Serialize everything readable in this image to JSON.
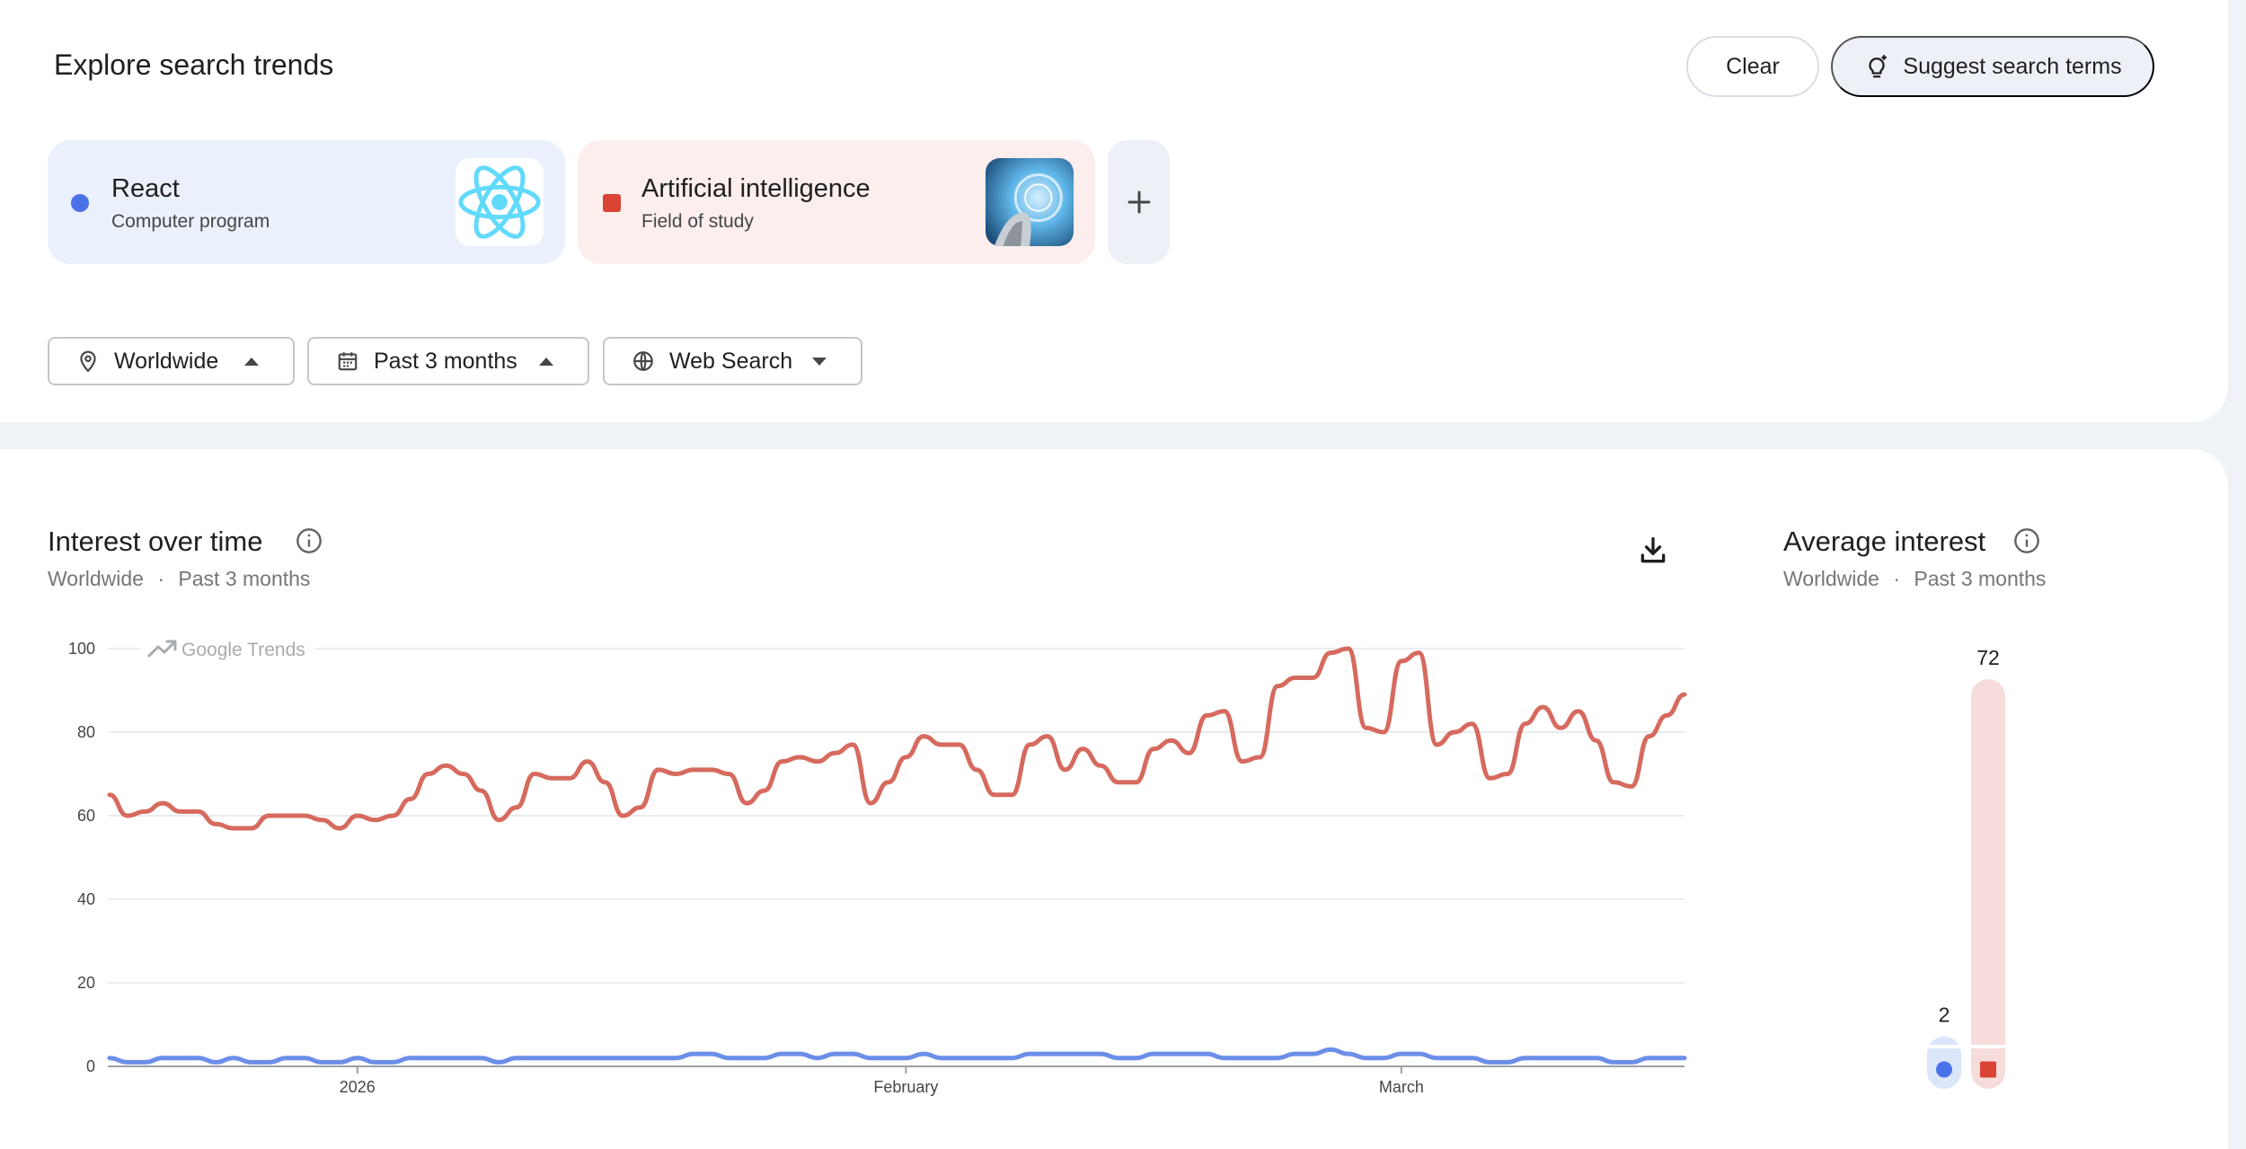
{
  "header": {
    "title": "Explore search trends",
    "clear_label": "Clear",
    "suggest_label": "Suggest search terms"
  },
  "terms": [
    {
      "name": "React",
      "type": "Computer program",
      "color": "#4a72e8",
      "marker": "circle"
    },
    {
      "name": "Artificial intelligence",
      "type": "Field of study",
      "color": "#d94434",
      "marker": "square"
    }
  ],
  "filters": {
    "location": "Worldwide",
    "time_range": "Past 3 months",
    "property": "Web Search"
  },
  "interest_over_time": {
    "title": "Interest over time",
    "location": "Worldwide",
    "separator": "·",
    "time_range": "Past 3 months"
  },
  "average_interest": {
    "title": "Average interest",
    "location": "Worldwide",
    "separator": "·",
    "time_range": "Past 3 months"
  },
  "chart_data": [
    {
      "type": "line",
      "watermark": "Google Trends",
      "ylim": [
        0,
        100
      ],
      "y_ticks": [
        0,
        20,
        40,
        60,
        80,
        100
      ],
      "x_tick_labels": [
        {
          "label": "2026",
          "index": 14
        },
        {
          "label": "February",
          "index": 45
        },
        {
          "label": "March",
          "index": 73
        }
      ],
      "num_points": 90,
      "series": [
        {
          "name": "Artificial intelligence",
          "color": "#d66a5e",
          "values": [
            65,
            60,
            61,
            63,
            61,
            61,
            58,
            57,
            57,
            60,
            60,
            60,
            59,
            57,
            60,
            59,
            60,
            64,
            70,
            72,
            70,
            66,
            59,
            62,
            70,
            69,
            69,
            73,
            68,
            60,
            62,
            71,
            70,
            71,
            71,
            70,
            63,
            66,
            73,
            74,
            73,
            75,
            77,
            63,
            68,
            74,
            79,
            77,
            77,
            71,
            65,
            65,
            77,
            79,
            71,
            76,
            72,
            68,
            68,
            76,
            78,
            75,
            84,
            85,
            73,
            74,
            91,
            93,
            93,
            99,
            100,
            81,
            80,
            97,
            99,
            77,
            80,
            82,
            69,
            70,
            82,
            86,
            81,
            85,
            78,
            68,
            67,
            79,
            84,
            89
          ]
        },
        {
          "name": "React",
          "color": "#6b8ee8",
          "values": [
            2,
            1,
            1,
            2,
            2,
            2,
            1,
            2,
            1,
            1,
            2,
            2,
            1,
            1,
            2,
            1,
            1,
            2,
            2,
            2,
            2,
            2,
            1,
            2,
            2,
            2,
            2,
            2,
            2,
            2,
            2,
            2,
            2,
            3,
            3,
            2,
            2,
            2,
            3,
            3,
            2,
            3,
            3,
            2,
            2,
            2,
            3,
            2,
            2,
            2,
            2,
            2,
            3,
            3,
            3,
            3,
            3,
            2,
            2,
            3,
            3,
            3,
            3,
            2,
            2,
            2,
            2,
            3,
            3,
            4,
            3,
            2,
            2,
            3,
            3,
            2,
            2,
            2,
            1,
            1,
            2,
            2,
            2,
            2,
            2,
            1,
            1,
            2,
            2,
            2
          ]
        }
      ]
    },
    {
      "type": "bar",
      "categories": [
        "React",
        "Artificial intelligence"
      ],
      "values": [
        2,
        72
      ],
      "ylim": [
        0,
        100
      ]
    }
  ]
}
